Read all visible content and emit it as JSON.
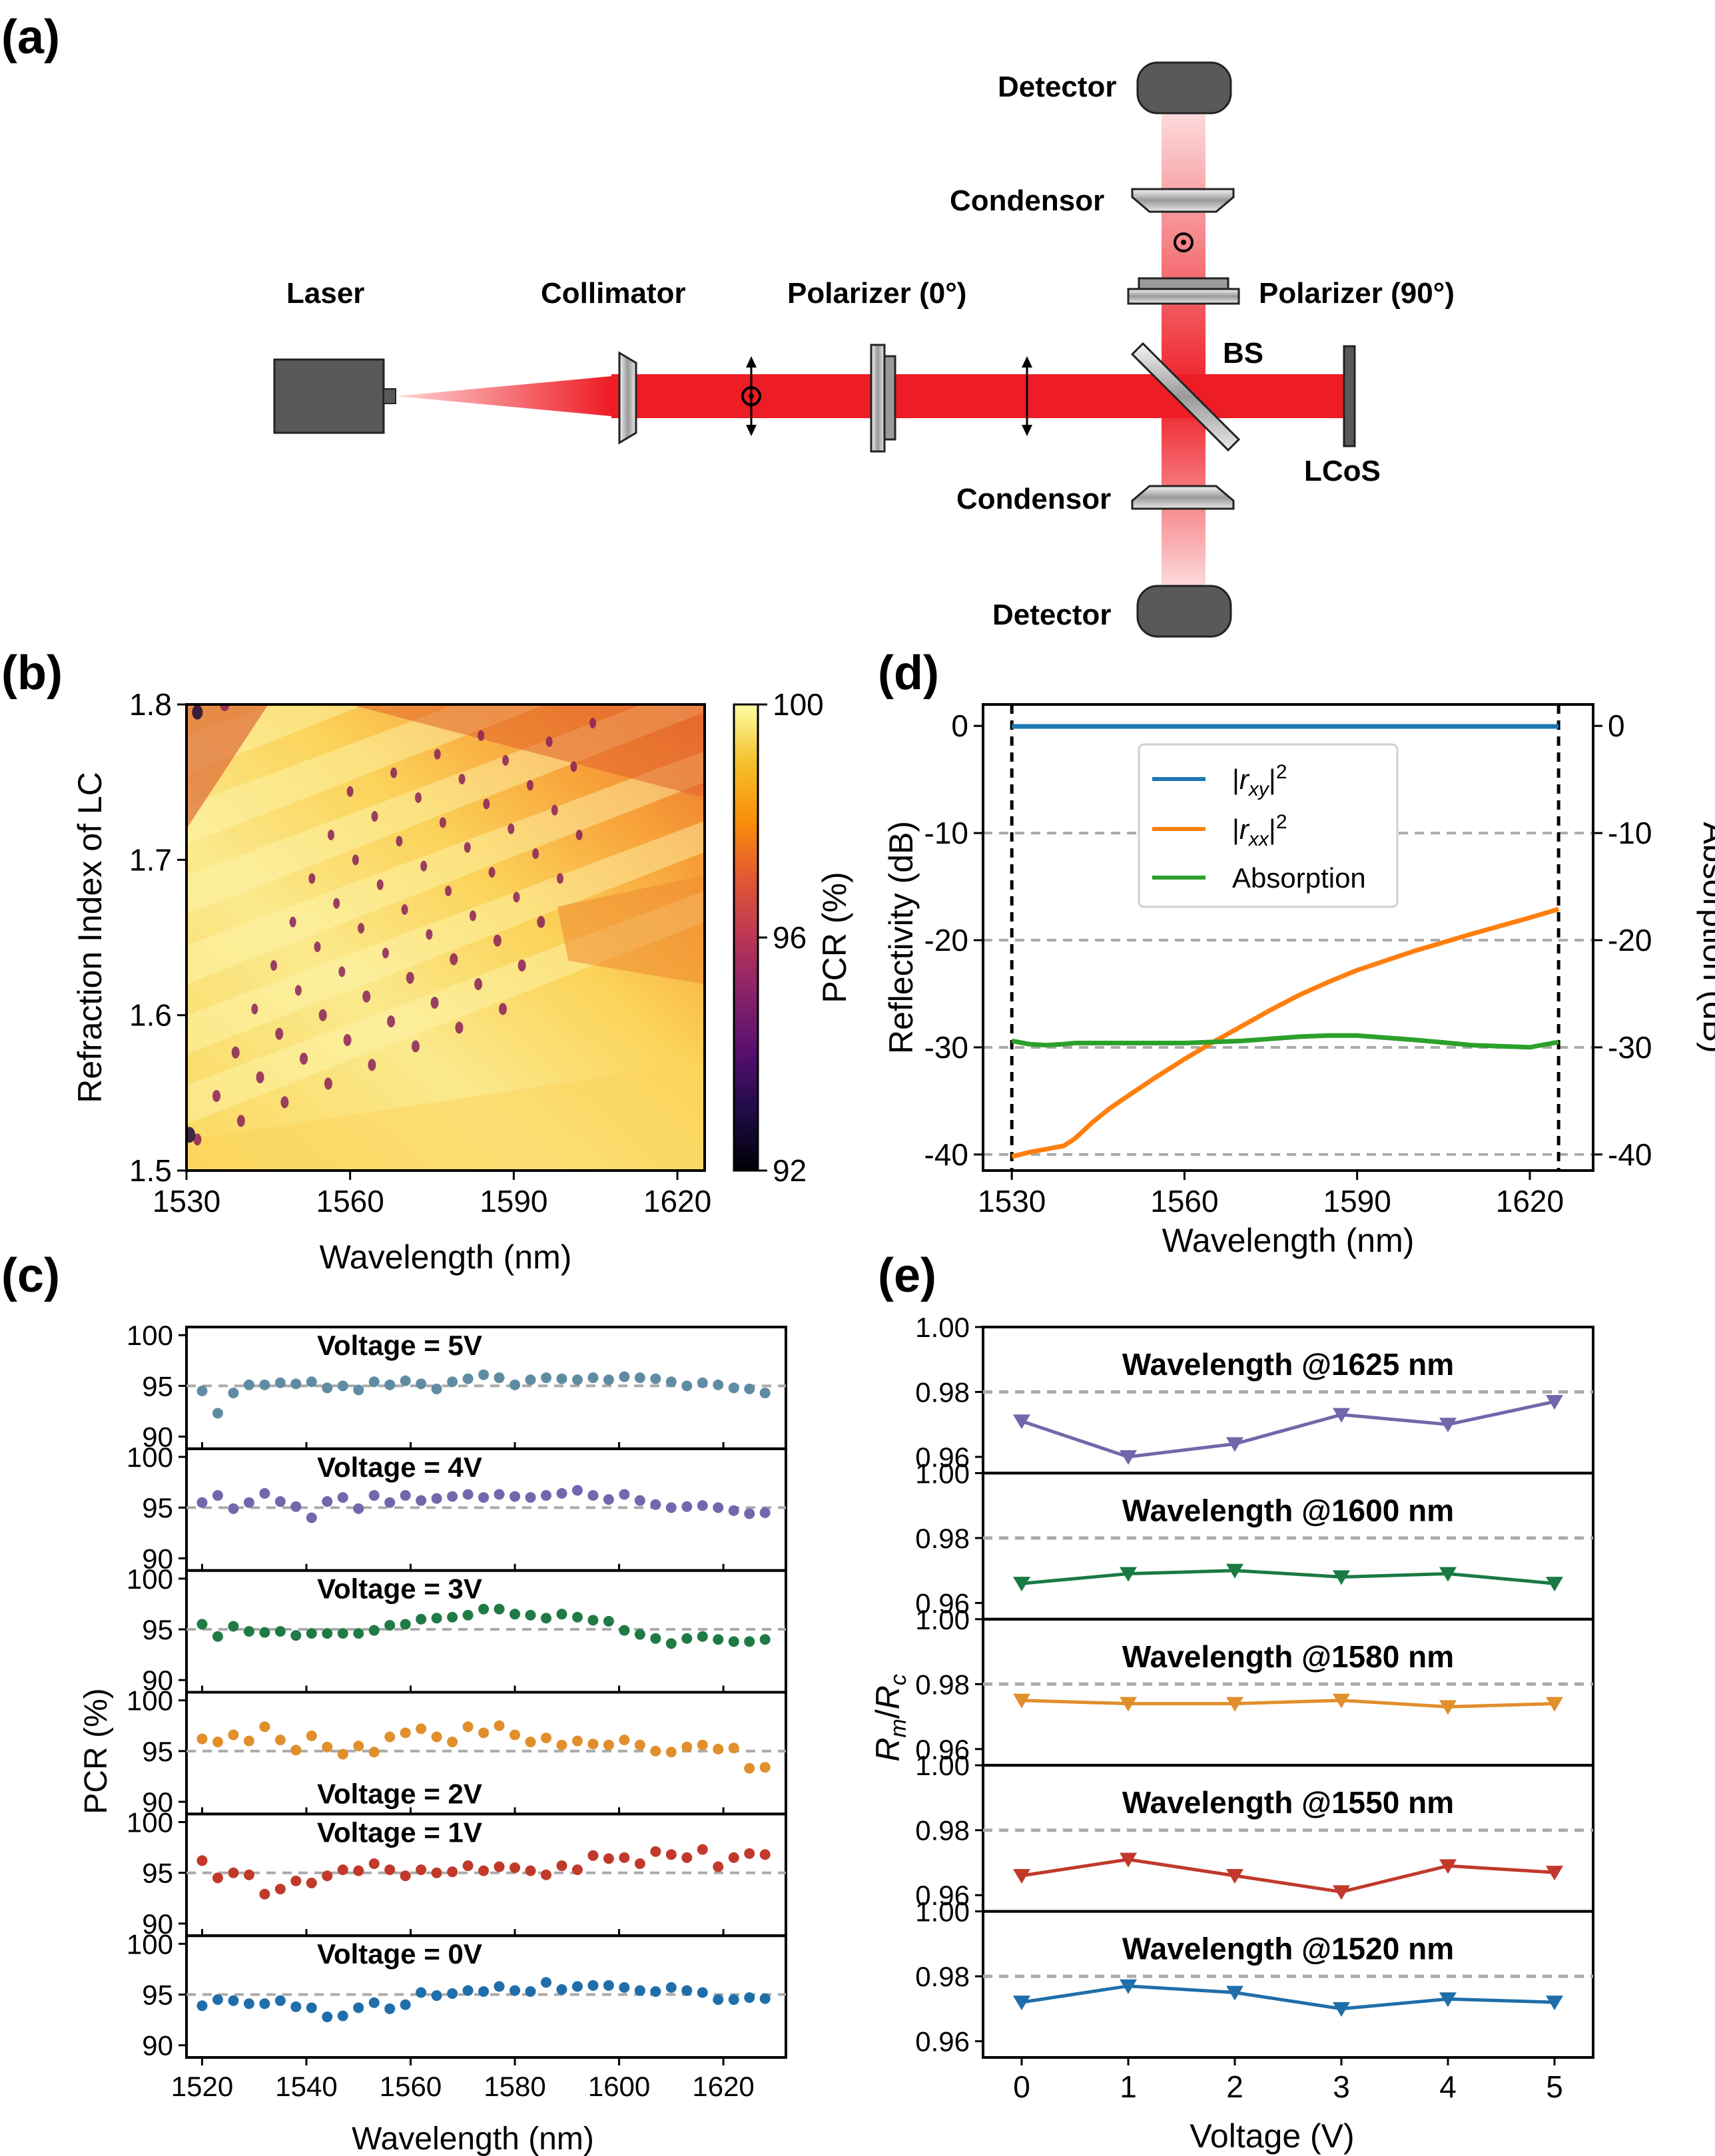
{
  "panel_labels": {
    "a": "(a)",
    "b": "(b)",
    "c": "(c)",
    "d": "(d)",
    "e": "(e)"
  },
  "setup": {
    "laser": "Laser",
    "collimator": "Collimator",
    "polarizer0": "Polarizer (0°)",
    "polarizer90": "Polarizer (90°)",
    "bs": "BS",
    "lcos": "LCoS",
    "condensor_top": "Condensor",
    "condensor_bottom": "Condensor",
    "detector_top": "Detector",
    "detector_bottom": "Detector",
    "beam_color": "#ee1c25",
    "device_color": "#595959"
  },
  "chart_data": [
    {
      "id": "b",
      "type": "heatmap",
      "xlabel": "Wavelength (nm)",
      "ylabel": "Refraction Index of LC",
      "xlim": [
        1530,
        1625
      ],
      "ylim": [
        1.5,
        1.8
      ],
      "xticks": [
        "1530",
        "1560",
        "1590",
        "1620"
      ],
      "yticks": [
        "1.5",
        "1.6",
        "1.7",
        "1.8"
      ],
      "colorbar": {
        "label": "PCR (%)",
        "range": [
          92,
          100
        ],
        "ticks": [
          "92",
          "96",
          "100"
        ],
        "colormap": "inferno"
      }
    },
    {
      "id": "c",
      "type": "scatter",
      "xlabel": "Wavelength (nm)",
      "ylabel": "PCR (%)",
      "xlim": [
        1517,
        1632
      ],
      "ylim": [
        90,
        100
      ],
      "reference": 95,
      "xticks": [
        "1520",
        "1540",
        "1560",
        "1580",
        "1600",
        "1620"
      ],
      "x": [
        1520,
        1523,
        1526,
        1529,
        1532,
        1535,
        1538,
        1541,
        1544,
        1547,
        1550,
        1553,
        1556,
        1559,
        1562,
        1565,
        1568,
        1571,
        1574,
        1577,
        1580,
        1583,
        1586,
        1589,
        1592,
        1595,
        1598,
        1601,
        1604,
        1607,
        1610,
        1613,
        1616,
        1619,
        1622,
        1625,
        1628
      ],
      "series": [
        {
          "name": "Voltage  =  5V",
          "color": "#5f8ca3",
          "values": [
            94.5,
            92.3,
            94.3,
            95.1,
            95.1,
            95.3,
            95.2,
            95.4,
            94.8,
            95.0,
            94.6,
            95.4,
            95.1,
            95.5,
            95.2,
            94.7,
            95.4,
            95.7,
            96.1,
            95.8,
            95.1,
            95.6,
            95.8,
            95.7,
            95.6,
            95.8,
            95.6,
            95.9,
            95.8,
            95.7,
            95.4,
            95.0,
            95.3,
            95.1,
            94.8,
            94.7,
            94.3
          ]
        },
        {
          "name": "Voltage  =  4V",
          "color": "#7565ad",
          "values": [
            95.5,
            96.2,
            94.9,
            95.5,
            96.4,
            95.6,
            95.1,
            94.0,
            95.6,
            96.0,
            94.9,
            96.2,
            95.5,
            96.2,
            95.7,
            95.9,
            96.1,
            96.3,
            96.0,
            96.3,
            96.1,
            96.0,
            96.2,
            96.4,
            96.7,
            96.2,
            95.8,
            96.3,
            95.7,
            95.3,
            95.0,
            95.1,
            95.2,
            95.0,
            94.7,
            94.4,
            94.5
          ]
        },
        {
          "name": "Voltage  =  3V",
          "color": "#1f7a45",
          "values": [
            95.5,
            94.3,
            95.3,
            94.8,
            94.7,
            94.8,
            94.4,
            94.6,
            94.6,
            94.6,
            94.6,
            94.9,
            95.4,
            95.5,
            96.0,
            96.1,
            96.2,
            96.4,
            97.0,
            97.0,
            96.5,
            96.4,
            96.1,
            96.5,
            96.2,
            95.9,
            95.8,
            94.9,
            94.5,
            94.1,
            93.6,
            94.1,
            94.3,
            94.0,
            93.8,
            93.8,
            94.0
          ]
        },
        {
          "name": "Voltage  =  2V",
          "color": "#e08f2c",
          "values": [
            96.2,
            95.9,
            96.6,
            96.0,
            97.4,
            96.1,
            95.1,
            96.5,
            95.4,
            94.7,
            95.5,
            94.9,
            96.4,
            96.8,
            97.2,
            96.4,
            95.9,
            97.4,
            96.8,
            97.5,
            96.6,
            95.9,
            96.3,
            95.6,
            96.0,
            95.7,
            95.6,
            96.1,
            95.6,
            95.0,
            94.9,
            95.4,
            95.6,
            95.2,
            95.3,
            93.3,
            93.4
          ]
        },
        {
          "name": "Voltage  =  1V",
          "color": "#c0392b",
          "values": [
            96.2,
            94.5,
            95.0,
            94.8,
            92.9,
            93.4,
            94.2,
            94.0,
            94.7,
            95.3,
            95.2,
            95.9,
            95.3,
            94.7,
            95.3,
            95.0,
            95.1,
            95.7,
            95.2,
            95.6,
            95.5,
            95.2,
            94.8,
            95.7,
            95.3,
            96.7,
            96.4,
            96.5,
            95.9,
            97.1,
            96.8,
            96.5,
            97.3,
            95.6,
            96.5,
            96.9,
            96.8
          ]
        },
        {
          "name": "Voltage  =  0V",
          "color": "#1f6eaa",
          "values": [
            93.9,
            94.5,
            94.4,
            94.1,
            94.1,
            94.4,
            93.8,
            93.7,
            92.8,
            92.9,
            93.7,
            94.2,
            93.6,
            94.0,
            95.2,
            94.9,
            95.1,
            95.4,
            95.3,
            95.8,
            95.4,
            95.3,
            96.2,
            95.5,
            95.8,
            95.9,
            95.9,
            95.7,
            95.4,
            95.3,
            95.7,
            95.4,
            95.2,
            94.5,
            94.5,
            94.7,
            94.6
          ]
        }
      ]
    },
    {
      "id": "d",
      "type": "line",
      "xlabel": "Wavelength (nm)",
      "ylabel": "Reflectivity (dB)",
      "ylabel_right": "Absorption (dB)",
      "xlim": [
        1525,
        1631
      ],
      "ylim": [
        -41.5,
        2
      ],
      "xticks": [
        "1530",
        "1560",
        "1590",
        "1620"
      ],
      "yticks": [
        "0",
        "-10",
        "-20",
        "-30",
        "-40"
      ],
      "yticks_right": [
        "0",
        "-10",
        "-20",
        "-30",
        "-40"
      ],
      "x": [
        1530,
        1533,
        1536,
        1539,
        1541,
        1544,
        1547,
        1550,
        1555,
        1560,
        1565,
        1570,
        1575,
        1580,
        1585,
        1590,
        1600,
        1610,
        1620,
        1625
      ],
      "series": [
        {
          "name": "|r_xy|²",
          "color": "#1f77b4",
          "values": [
            -0.05,
            -0.05,
            -0.05,
            -0.05,
            -0.05,
            -0.05,
            -0.05,
            -0.05,
            -0.05,
            -0.05,
            -0.05,
            -0.05,
            -0.05,
            -0.05,
            -0.05,
            -0.05,
            -0.05,
            -0.05,
            -0.05,
            -0.05
          ]
        },
        {
          "name": "|r_xx|²",
          "color": "#ff7f0e",
          "values": [
            -40.2,
            -39.8,
            -39.5,
            -39.2,
            -38.5,
            -37.0,
            -35.7,
            -34.6,
            -32.8,
            -31.1,
            -29.5,
            -28.0,
            -26.5,
            -25.1,
            -23.9,
            -22.8,
            -21.0,
            -19.4,
            -17.9,
            -17.1
          ]
        },
        {
          "name": "Absorption",
          "color": "#2ca02c",
          "values": [
            -29.4,
            -29.7,
            -29.8,
            -29.7,
            -29.6,
            -29.6,
            -29.6,
            -29.6,
            -29.6,
            -29.6,
            -29.5,
            -29.4,
            -29.2,
            -29.0,
            -28.9,
            -28.9,
            -29.3,
            -29.8,
            -30.0,
            -29.5
          ]
        }
      ],
      "markers": [
        1530,
        1625
      ],
      "legend": "top-center"
    },
    {
      "id": "e",
      "type": "line",
      "xlabel": "Voltage (V)",
      "ylabel": "R_m/R_c",
      "x": [
        0,
        1,
        2,
        3,
        4,
        5
      ],
      "xticks": [
        "0",
        "1",
        "2",
        "3",
        "4",
        "5"
      ],
      "yticks": [
        "0.96",
        "0.98",
        "1.00"
      ],
      "ylim": [
        0.955,
        1.0
      ],
      "reference": 0.98,
      "series": [
        {
          "name": "Wavelength  @1625 nm",
          "color": "#7068aa",
          "values": [
            0.971,
            0.96,
            0.964,
            0.973,
            0.97,
            0.977
          ]
        },
        {
          "name": "Wavelength  @1600 nm",
          "color": "#1a7a43",
          "values": [
            0.966,
            0.969,
            0.97,
            0.968,
            0.969,
            0.966
          ]
        },
        {
          "name": "Wavelength  @1580 nm",
          "color": "#e08f2c",
          "values": [
            0.975,
            0.974,
            0.974,
            0.975,
            0.973,
            0.974
          ]
        },
        {
          "name": "Wavelength  @1550 nm",
          "color": "#c0392b",
          "values": [
            0.966,
            0.971,
            0.966,
            0.961,
            0.969,
            0.967
          ]
        },
        {
          "name": "Wavelength  @1520 nm",
          "color": "#1f6eaa",
          "values": [
            0.972,
            0.977,
            0.975,
            0.97,
            0.973,
            0.972
          ]
        }
      ]
    }
  ]
}
